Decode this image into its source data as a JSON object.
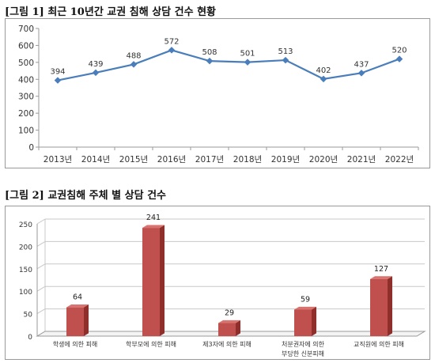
{
  "figure1_title": "[그림 1] 최근 10년간 교권 침해 상담 건수 현황",
  "figure2_title": "[그림 2] 교권침해 주체 별 상담 건수",
  "chart_data": [
    {
      "type": "line",
      "categories": [
        "2013년",
        "2014년",
        "2015년",
        "2016년",
        "2017년",
        "2018년",
        "2019년",
        "2020년",
        "2021년",
        "2022년"
      ],
      "values": [
        394,
        439,
        488,
        572,
        508,
        501,
        513,
        402,
        437,
        520
      ],
      "data_labels": [
        "394",
        "439",
        "488",
        "572",
        "508",
        "501",
        "513",
        "402",
        "437",
        "520"
      ],
      "ylim": [
        0,
        700
      ],
      "yticks": [
        "0",
        "100",
        "200",
        "300",
        "400",
        "500",
        "600",
        "700"
      ],
      "color": "#4a7ebb",
      "grid": false
    },
    {
      "type": "bar",
      "categories": [
        "학생에 의한 피해",
        "학부모에 의한 피해",
        "제3자에 의한 피해",
        "처분권자에 의한 부당한 신분피해",
        "교직원에 의한 피해"
      ],
      "category_lines": [
        [
          "학생에 의한 피해"
        ],
        [
          "학부모에 의한 피해"
        ],
        [
          "제3자에 의한 피해"
        ],
        [
          "처분권자에 의한",
          "부당한 신분피해"
        ],
        [
          "교직원에 의한 피해"
        ]
      ],
      "values": [
        64,
        241,
        29,
        59,
        127
      ],
      "data_labels": [
        "64",
        "241",
        "29",
        "59",
        "127"
      ],
      "ylim": [
        0,
        250
      ],
      "yticks": [
        "0",
        "50",
        "100",
        "150",
        "200",
        "250"
      ],
      "color": "#c0504d",
      "grid": true
    }
  ]
}
